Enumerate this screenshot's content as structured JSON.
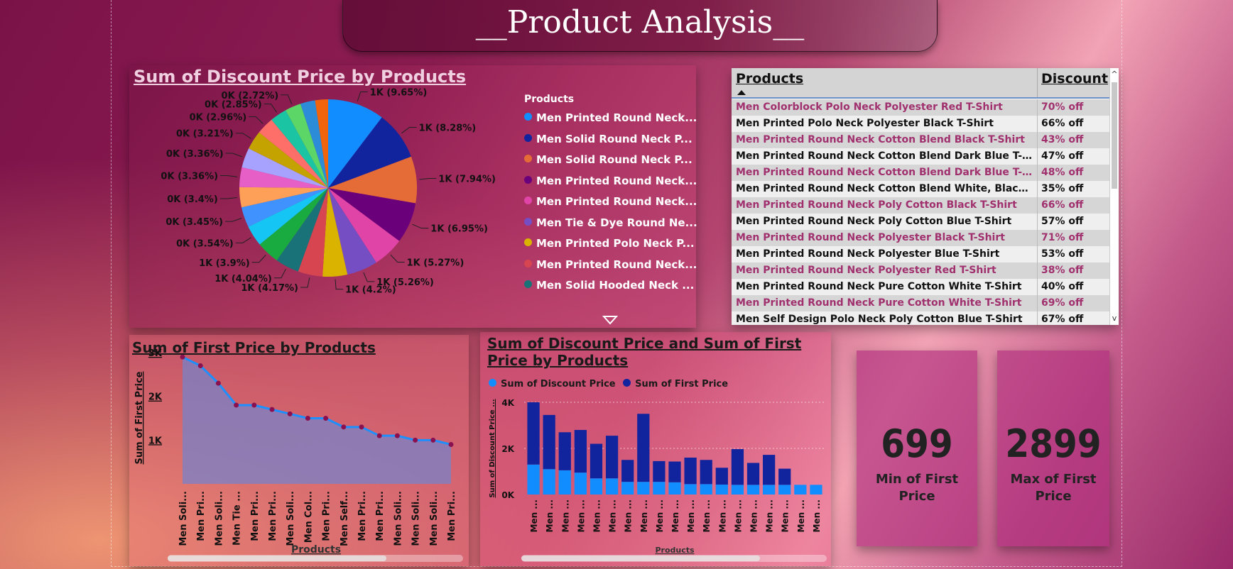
{
  "page": {
    "title": "__Product Analysis__"
  },
  "colors": {
    "accent_pink": "#a0306e",
    "dark_blue": "#1528a0",
    "light_blue": "#1e90ff"
  },
  "pie": {
    "title": "Sum of Discount Price by Products",
    "legend_title": "Products",
    "legend": [
      {
        "label": "Men Printed Round Neck...",
        "color": "#118DFF"
      },
      {
        "label": "Men Solid Round Neck P...",
        "color": "#12239E"
      },
      {
        "label": "Men Solid Round Neck P...",
        "color": "#E66C37"
      },
      {
        "label": "Men Printed Round Neck...",
        "color": "#6B007B"
      },
      {
        "label": "Men Printed Round Neck...",
        "color": "#E044A7"
      },
      {
        "label": "Men Tie & Dye Round Ne...",
        "color": "#744EC2"
      },
      {
        "label": "Men Printed Polo Neck P...",
        "color": "#D9B300"
      },
      {
        "label": "Men Printed Round Neck...",
        "color": "#D64550"
      },
      {
        "label": "Men Solid Hooded Neck ...",
        "color": "#197278"
      }
    ]
  },
  "chart_data": [
    {
      "type": "pie",
      "title": "Sum of Discount Price by Products",
      "legend_title": "Products",
      "slices": [
        {
          "label": "1K (9.65%)",
          "value": 9.65,
          "color": "#118DFF"
        },
        {
          "label": "1K (8.28%)",
          "value": 8.28,
          "color": "#12239E"
        },
        {
          "label": "1K (7.94%)",
          "value": 7.94,
          "color": "#E66C37"
        },
        {
          "label": "1K (6.95%)",
          "value": 6.95,
          "color": "#6B007B"
        },
        {
          "label": "1K (5.27%)",
          "value": 5.27,
          "color": "#E044A7"
        },
        {
          "label": "1K (5.26%)",
          "value": 5.26,
          "color": "#744EC2"
        },
        {
          "label": "1K (4.2%)",
          "value": 4.2,
          "color": "#D9B300"
        },
        {
          "label": "1K (4.17%)",
          "value": 4.17,
          "color": "#D64550"
        },
        {
          "label": "1K (4.04%)",
          "value": 4.04,
          "color": "#197278"
        },
        {
          "label": "1K (3.9%)",
          "value": 3.9,
          "color": "#1AAB40"
        },
        {
          "label": "0K (3.54%)",
          "value": 3.54,
          "color": "#15C6F4"
        },
        {
          "label": "0K (3.45%)",
          "value": 3.45,
          "color": "#4092FF"
        },
        {
          "label": "0K (3.4%)",
          "value": 3.4,
          "color": "#FFA058"
        },
        {
          "label": "0K (3.36%)",
          "value": 3.36,
          "color": "#E55FC7"
        },
        {
          "label": "0K (3.36%)",
          "value": 3.36,
          "color": "#A8A2FF"
        },
        {
          "label": "0K (3.21%)",
          "value": 3.21,
          "color": "#C4A200"
        },
        {
          "label": "0K (2.96%)",
          "value": 2.96,
          "color": "#FF6F69"
        },
        {
          "label": "0K (2.85%)",
          "value": 2.85,
          "color": "#1BC5A4"
        },
        {
          "label": "0K (2.72%)",
          "value": 2.72,
          "color": "#5BD667"
        },
        {
          "label": "",
          "value": 2.5,
          "color": "#2D8CD8"
        },
        {
          "label": "",
          "value": 2.2,
          "color": "#F2640C"
        }
      ]
    },
    {
      "type": "area",
      "title": "Sum of First Price by Products",
      "xlabel": "Products",
      "ylabel": "Sum of First Price",
      "yticks": [
        "1K",
        "2K",
        "3K"
      ],
      "ylim": [
        0,
        3000
      ],
      "categories": [
        "Men Soli...",
        "Men Pri...",
        "Men Soli...",
        "Men Tie ...",
        "Men Pri...",
        "Men Pri...",
        "Men Soli...",
        "Men Col...",
        "Men Pri...",
        "Men Self...",
        "Men Pri...",
        "Men Pri...",
        "Men Soli...",
        "Men Soli...",
        "Men Soli...",
        "Men Pri..."
      ],
      "values": [
        2900,
        2700,
        2300,
        1800,
        1800,
        1700,
        1600,
        1500,
        1500,
        1300,
        1300,
        1100,
        1100,
        1000,
        1000,
        900
      ]
    },
    {
      "type": "bar",
      "title": "Sum of Discount Price and Sum of First Price by Products",
      "xlabel": "Products",
      "ylabel": "Sum of Discount Price ...",
      "yticks": [
        "0K",
        "2K",
        "4K"
      ],
      "ylim": [
        0,
        4000
      ],
      "categories": [
        "Men ...",
        "Men ...",
        "Men ...",
        "Men ...",
        "Men ...",
        "Men ...",
        "Men ...",
        "Men ...",
        "Men ...",
        "Men ...",
        "Men ...",
        "Men ...",
        "Men ...",
        "Men ...",
        "Men ...",
        "Men ...",
        "Men ...",
        "Men ...",
        "Men ..."
      ],
      "series": [
        {
          "name": "Sum of Discount Price",
          "color": "#118DFF",
          "values": [
            1300,
            1100,
            1050,
            950,
            700,
            700,
            550,
            550,
            550,
            530,
            450,
            450,
            430,
            420,
            420,
            420,
            420,
            420,
            420
          ]
        },
        {
          "name": "Sum of First Price",
          "color": "#12239E",
          "values": [
            2700,
            2350,
            1650,
            1850,
            1500,
            1850,
            950,
            2950,
            900,
            900,
            1150,
            1050,
            730,
            1550,
            950,
            1300,
            700,
            0,
            0
          ]
        }
      ]
    }
  ],
  "table": {
    "col_products": "Products",
    "col_discount": "Discount",
    "rows": [
      {
        "product": "Men Colorblock Polo Neck Polyester Red T-Shirt",
        "discount": "70% off"
      },
      {
        "product": "Men Printed Polo Neck Polyester Black T-Shirt",
        "discount": "66% off"
      },
      {
        "product": "Men Printed Round Neck Cotton Blend Black T-Shirt",
        "discount": "43% off"
      },
      {
        "product": "Men Printed Round Neck Cotton Blend Dark Blue T-Shirt",
        "discount": "47% off"
      },
      {
        "product": "Men Printed Round Neck Cotton Blend Dark Blue T-Shirt",
        "discount": "48% off"
      },
      {
        "product": "Men Printed Round Neck Cotton Blend White, Black T-Shirt",
        "discount": "35% off"
      },
      {
        "product": "Men Printed Round Neck Poly Cotton Black T-Shirt",
        "discount": "66% off"
      },
      {
        "product": "Men Printed Round Neck Poly Cotton Blue T-Shirt",
        "discount": "57% off"
      },
      {
        "product": "Men Printed Round Neck Polyester Black T-Shirt",
        "discount": "71% off"
      },
      {
        "product": "Men Printed Round Neck Polyester Blue T-Shirt",
        "discount": "53% off"
      },
      {
        "product": "Men Printed Round Neck Polyester Red T-Shirt",
        "discount": "38% off"
      },
      {
        "product": "Men Printed Round Neck Pure Cotton White T-Shirt",
        "discount": "40% off"
      },
      {
        "product": "Men Printed Round Neck Pure Cotton White T-Shirt",
        "discount": "69% off"
      },
      {
        "product": "Men Self Design Polo Neck Poly Cotton Blue T-Shirt",
        "discount": "67% off"
      }
    ]
  },
  "cards": {
    "min": {
      "value": "699",
      "label": "Min of First Price"
    },
    "max": {
      "value": "2899",
      "label": "Max of First Price"
    }
  }
}
